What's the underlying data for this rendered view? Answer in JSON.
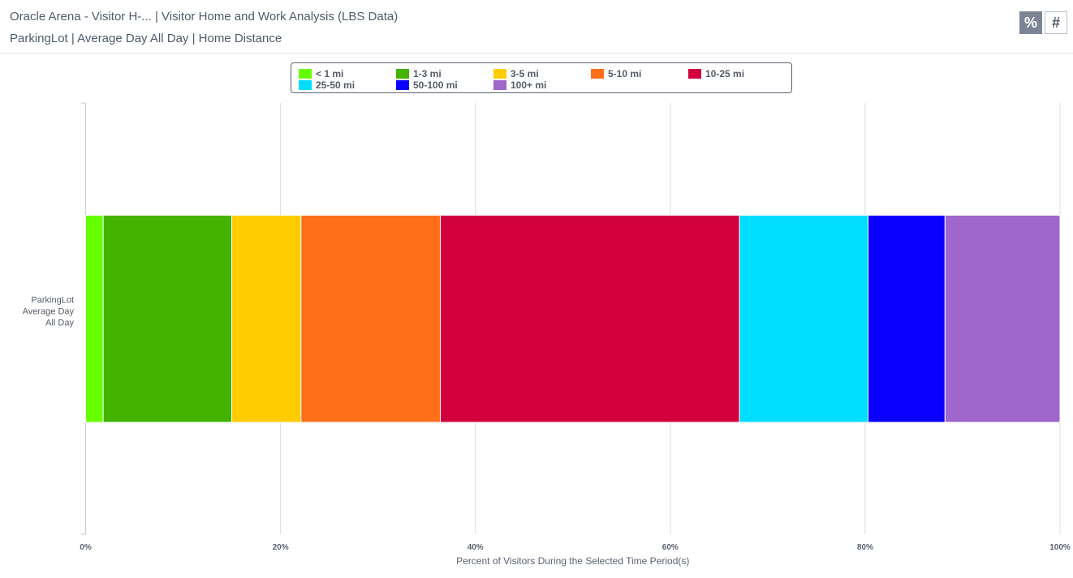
{
  "header": {
    "title": "Oracle Arena - Visitor H-... | Visitor Home and Work Analysis (LBS Data)",
    "subtitle": "ParkingLot | Average Day All Day | Home Distance",
    "mode_percent_label": "%",
    "mode_count_label": "#"
  },
  "chart_data": {
    "type": "bar",
    "orientation": "horizontal",
    "stacking": "percent",
    "categories": [
      "ParkingLot Average Day All Day"
    ],
    "category_label_lines": [
      "ParkingLot",
      "Average Day",
      "All Day"
    ],
    "series": [
      {
        "name": "< 1 mi",
        "color": "#66ff00",
        "values": [
          1.8
        ]
      },
      {
        "name": "1-3 mi",
        "color": "#44b300",
        "values": [
          13.2
        ]
      },
      {
        "name": "3-5 mi",
        "color": "#ffcc00",
        "values": [
          7.1
        ]
      },
      {
        "name": "5-10 mi",
        "color": "#ff6f1a",
        "values": [
          14.3
        ]
      },
      {
        "name": "10-25 mi",
        "color": "#d1003d",
        "values": [
          30.7
        ]
      },
      {
        "name": "25-50 mi",
        "color": "#00ddff",
        "values": [
          13.2
        ]
      },
      {
        "name": "50-100 mi",
        "color": "#0a00ff",
        "values": [
          7.9
        ]
      },
      {
        "name": "100+ mi",
        "color": "#9f66cc",
        "values": [
          11.8
        ]
      }
    ],
    "xlim": [
      0,
      100
    ],
    "xticks": [
      "0%",
      "20%",
      "40%",
      "60%",
      "80%",
      "100%"
    ],
    "xtick_values": [
      0,
      20,
      40,
      60,
      80,
      100
    ],
    "xlabel": "Percent of Visitors During the Selected Time Period(s)",
    "ylabel": "",
    "grid": true,
    "legend_position": "top-center"
  }
}
